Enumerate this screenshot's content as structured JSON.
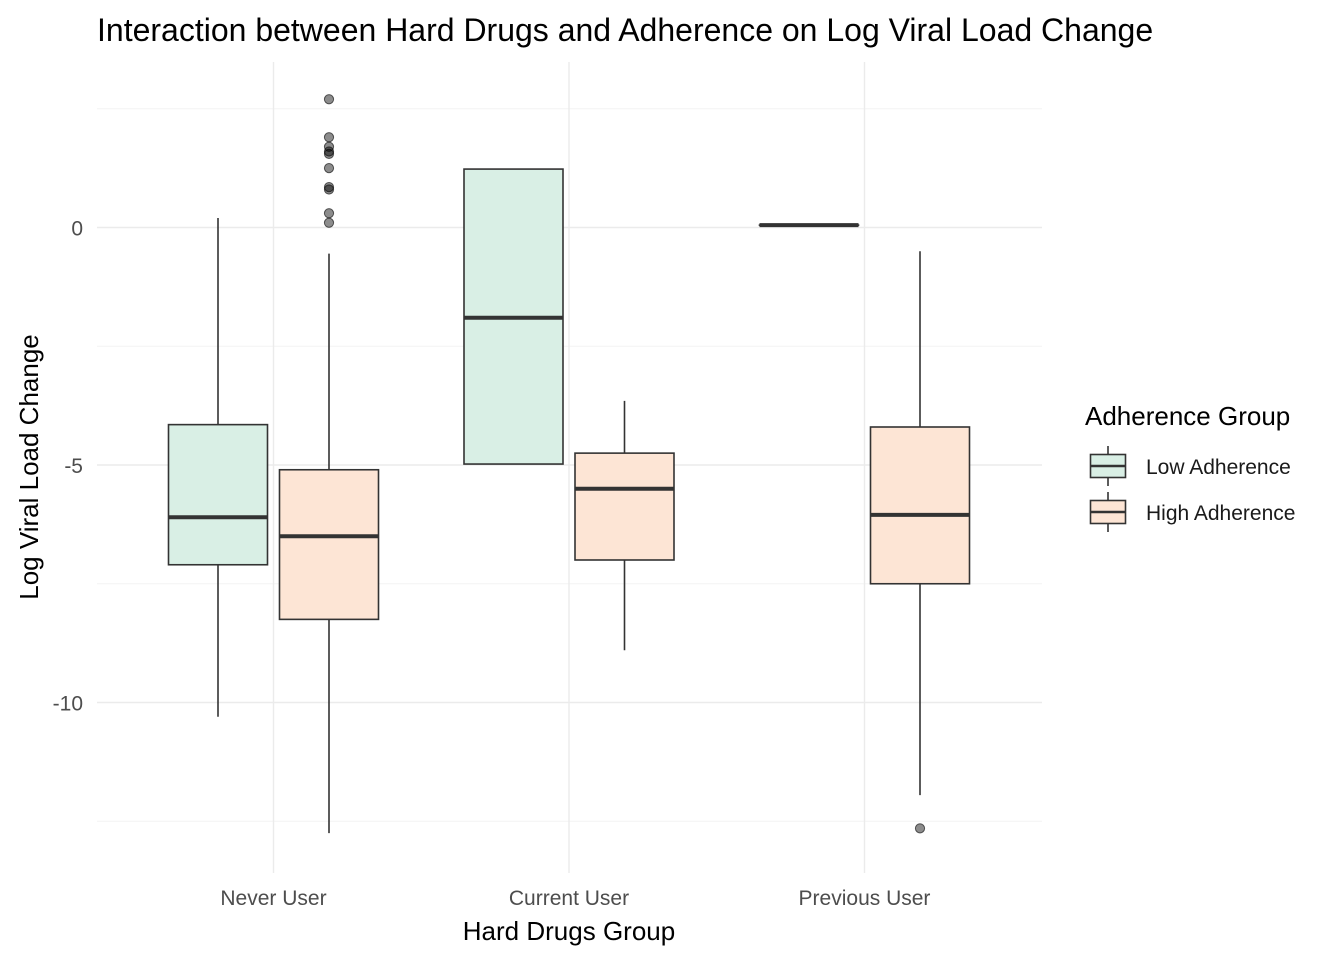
{
  "chart_data": {
    "type": "boxplot",
    "title": "Interaction between Hard Drugs and Adherence on Log Viral Load Change",
    "xlabel": "Hard Drugs Group",
    "ylabel": "Log Viral Load Change",
    "categories": [
      "Never User",
      "Current User",
      "Previous User"
    ],
    "y_ticks": [
      {
        "value": 0,
        "label": "0"
      },
      {
        "value": -5,
        "label": "-5"
      },
      {
        "value": -10,
        "label": "-10"
      }
    ],
    "ylim": [
      -13.4,
      3.5
    ],
    "grid": true,
    "legend": {
      "title": "Adherence Group",
      "position": "right"
    },
    "series": [
      {
        "name": "Low Adherence",
        "color": "#d9efe5",
        "boxes": [
          {
            "category": "Never User",
            "whisker_low": -10.3,
            "q1": -7.1,
            "median": -6.1,
            "q3": -4.15,
            "whisker_high": 0.2,
            "outliers": []
          },
          {
            "category": "Current User",
            "whisker_low": -4.98,
            "q1": -4.98,
            "median": -1.9,
            "q3": 1.23,
            "whisker_high": 1.23,
            "outliers": []
          },
          {
            "category": "Previous User",
            "whisker_low": 0.05,
            "q1": 0.05,
            "median": 0.05,
            "q3": 0.05,
            "whisker_high": 0.05,
            "outliers": []
          }
        ]
      },
      {
        "name": "High Adherence",
        "color": "#fde5d5",
        "boxes": [
          {
            "category": "Never User",
            "whisker_low": -12.75,
            "q1": -8.25,
            "median": -6.5,
            "q3": -5.1,
            "whisker_high": -0.55,
            "outliers": [
              2.7,
              1.9,
              1.7,
              1.6,
              1.55,
              1.25,
              0.85,
              0.8,
              0.3,
              0.1
            ]
          },
          {
            "category": "Current User",
            "whisker_low": -8.9,
            "q1": -7.0,
            "median": -5.5,
            "q3": -4.75,
            "whisker_high": -3.65,
            "outliers": []
          },
          {
            "category": "Previous User",
            "whisker_low": -11.95,
            "q1": -7.5,
            "median": -6.05,
            "q3": -4.2,
            "whisker_high": -0.5,
            "outliers": [
              -12.65
            ]
          }
        ]
      }
    ]
  }
}
